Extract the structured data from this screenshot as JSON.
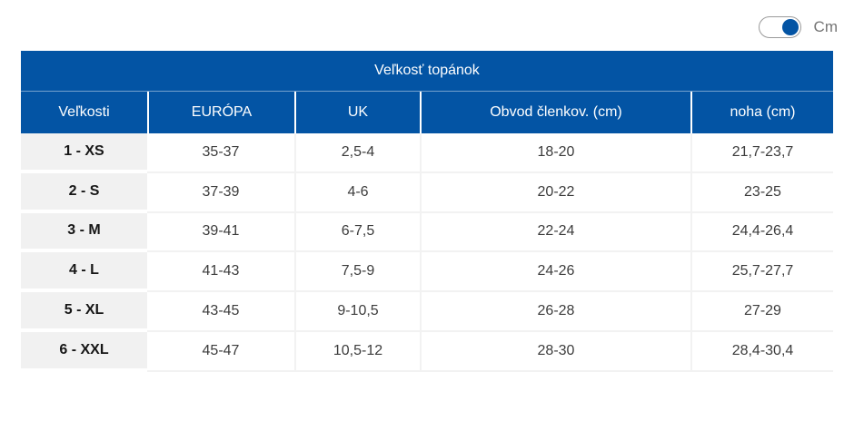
{
  "toggle": {
    "label": "Cm",
    "state": "on"
  },
  "colors": {
    "blue": "#0354a4",
    "row-gray": "#f1f1f1",
    "grid-line": "#f2f2f2",
    "text-dark": "#3c3c3c",
    "label-gray": "#757575"
  },
  "table": {
    "title": "Veľkosť topánok",
    "columns": [
      "Veľkosti",
      "EURÓPA",
      "UK",
      "Obvod členkov. (cm)",
      "noha (cm)"
    ],
    "rows": [
      {
        "size": "1 - XS",
        "europa": "35-37",
        "uk": "2,5-4",
        "obvod": "18-20",
        "noha": "21,7-23,7"
      },
      {
        "size": "2 - S",
        "europa": "37-39",
        "uk": "4-6",
        "obvod": "20-22",
        "noha": "23-25"
      },
      {
        "size": "3 - M",
        "europa": "39-41",
        "uk": "6-7,5",
        "obvod": "22-24",
        "noha": "24,4-26,4"
      },
      {
        "size": "4 - L",
        "europa": "41-43",
        "uk": "7,5-9",
        "obvod": "24-26",
        "noha": "25,7-27,7"
      },
      {
        "size": "5 - XL",
        "europa": "43-45",
        "uk": "9-10,5",
        "obvod": "26-28",
        "noha": "27-29"
      },
      {
        "size": "6 - XXL",
        "europa": "45-47",
        "uk": "10,5-12",
        "obvod": "28-30",
        "noha": "28,4-30,4"
      }
    ]
  }
}
